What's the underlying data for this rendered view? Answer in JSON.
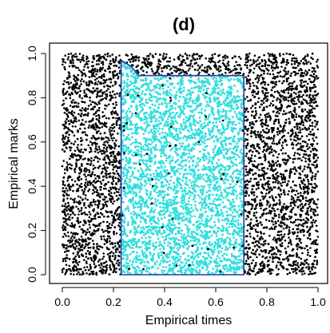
{
  "chart_data": {
    "type": "scatter",
    "panel_label": "(d)",
    "xlabel": "Empirical times",
    "ylabel": "Empirical marks",
    "xlim": [
      0.0,
      1.0
    ],
    "ylim": [
      0.0,
      1.0
    ],
    "x_ticks": [
      "0.0",
      "0.2",
      "0.4",
      "0.6",
      "0.8",
      "1.0"
    ],
    "y_ticks": [
      "0.0",
      "0.2",
      "0.4",
      "0.6",
      "0.8",
      "1.0"
    ],
    "grid": false,
    "legend": "none",
    "series": [
      {
        "color": "#000000",
        "distribution": "uniform over full unit square",
        "count": 9000
      },
      {
        "color": "#33dddd",
        "distribution": "uniform inside highlighted region",
        "count": 3500
      }
    ],
    "highlight_region": {
      "outline_color": "#1f3f9f",
      "fill_color": "#33dddd",
      "polygon": [
        [
          0.23,
          0.0
        ],
        [
          0.23,
          0.97
        ],
        [
          0.27,
          0.94
        ],
        [
          0.3,
          0.9
        ],
        [
          0.71,
          0.9
        ],
        [
          0.71,
          0.0
        ]
      ]
    }
  }
}
